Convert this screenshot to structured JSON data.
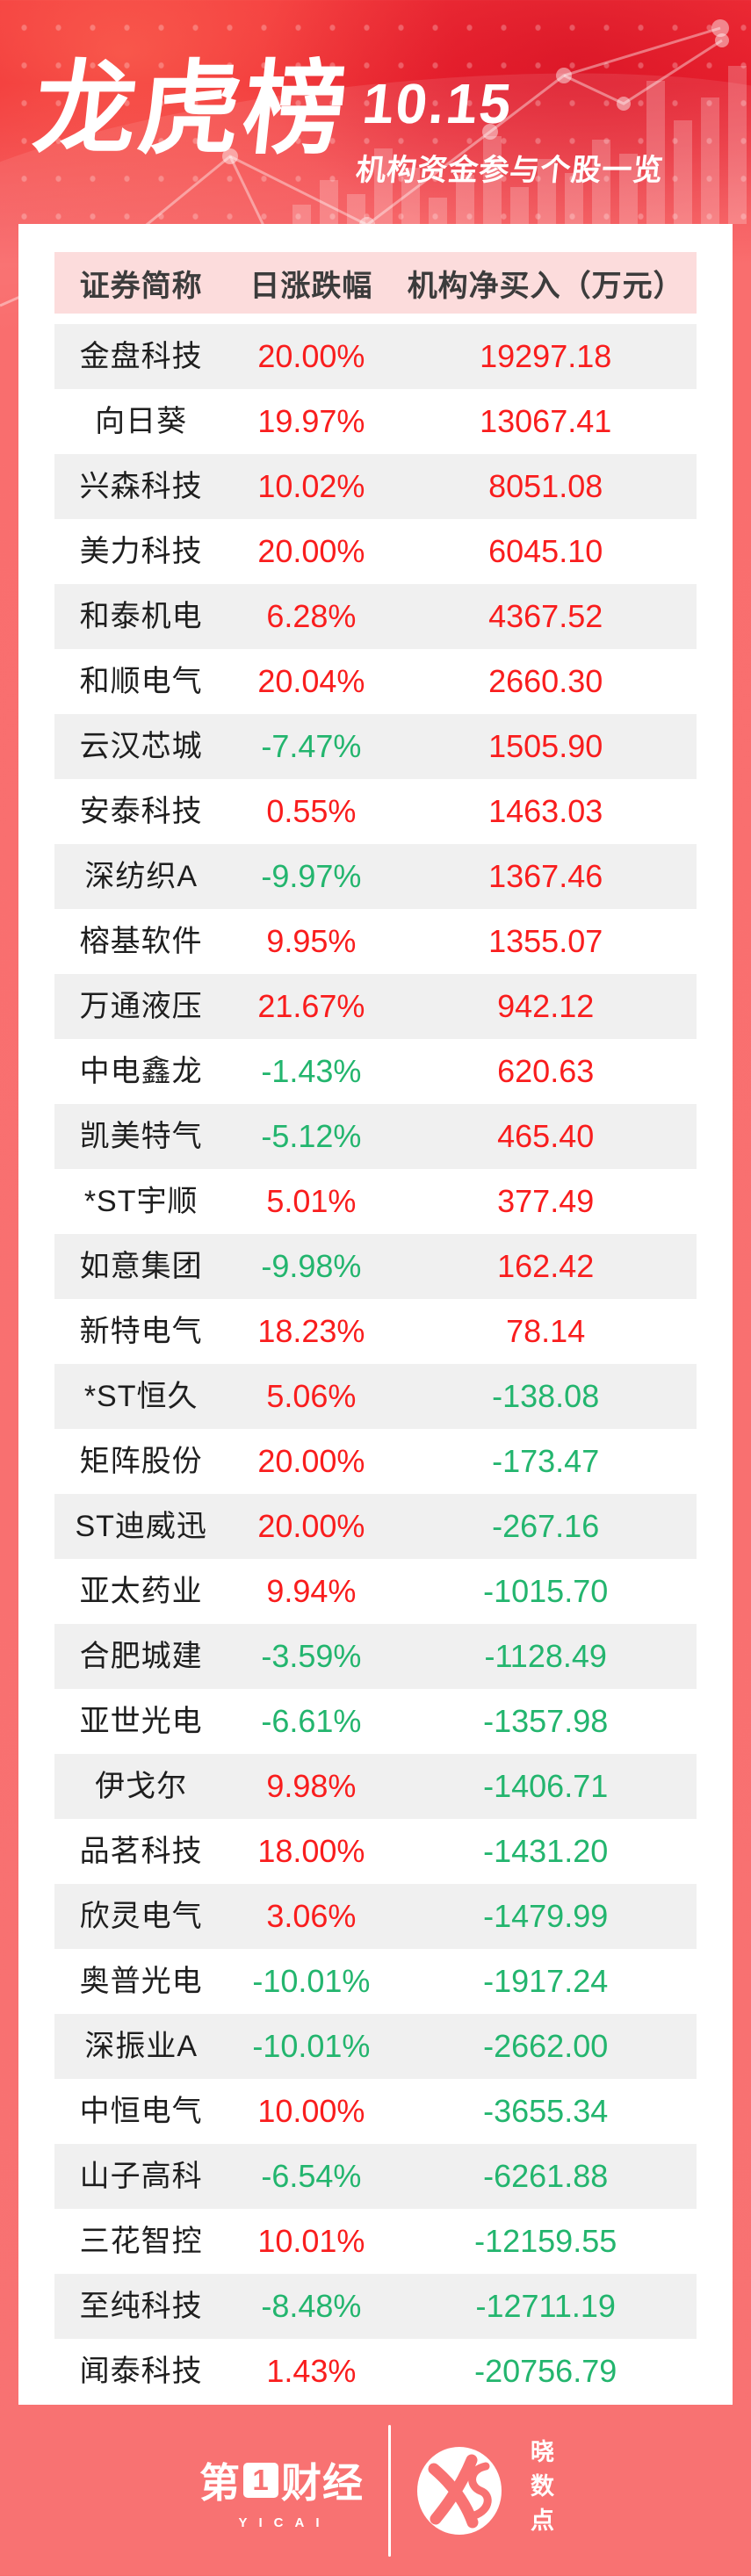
{
  "header": {
    "title": "龙虎榜",
    "date": "10.15",
    "subtitle": "机构资金参与个股一览"
  },
  "chart_data": {
    "type": "table",
    "title": "龙虎榜 10.15 机构资金参与个股一览",
    "columns": [
      "证券简称",
      "日涨跌幅",
      "机构净买入（万元）"
    ],
    "rows": [
      [
        "金盘科技",
        "20.00%",
        "19297.18"
      ],
      [
        "向日葵",
        "19.97%",
        "13067.41"
      ],
      [
        "兴森科技",
        "10.02%",
        "8051.08"
      ],
      [
        "美力科技",
        "20.00%",
        "6045.10"
      ],
      [
        "和泰机电",
        "6.28%",
        "4367.52"
      ],
      [
        "和顺电气",
        "20.04%",
        "2660.30"
      ],
      [
        "云汉芯城",
        "-7.47%",
        "1505.90"
      ],
      [
        "安泰科技",
        "0.55%",
        "1463.03"
      ],
      [
        "深纺织A",
        "-9.97%",
        "1367.46"
      ],
      [
        "榕基软件",
        "9.95%",
        "1355.07"
      ],
      [
        "万通液压",
        "21.67%",
        "942.12"
      ],
      [
        "中电鑫龙",
        "-1.43%",
        "620.63"
      ],
      [
        "凯美特气",
        "-5.12%",
        "465.40"
      ],
      [
        "*ST宇顺",
        "5.01%",
        "377.49"
      ],
      [
        "如意集团",
        "-9.98%",
        "162.42"
      ],
      [
        "新特电气",
        "18.23%",
        "78.14"
      ],
      [
        "*ST恒久",
        "5.06%",
        "-138.08"
      ],
      [
        "矩阵股份",
        "20.00%",
        "-173.47"
      ],
      [
        "ST迪威迅",
        "20.00%",
        "-267.16"
      ],
      [
        "亚太药业",
        "9.94%",
        "-1015.70"
      ],
      [
        "合肥城建",
        "-3.59%",
        "-1128.49"
      ],
      [
        "亚世光电",
        "-6.61%",
        "-1357.98"
      ],
      [
        "伊戈尔",
        "9.98%",
        "-1406.71"
      ],
      [
        "品茗科技",
        "18.00%",
        "-1431.20"
      ],
      [
        "欣灵电气",
        "3.06%",
        "-1479.99"
      ],
      [
        "奥普光电",
        "-10.01%",
        "-1917.24"
      ],
      [
        "深振业A",
        "-10.01%",
        "-2662.00"
      ],
      [
        "中恒电气",
        "10.00%",
        "-3655.34"
      ],
      [
        "山子高科",
        "-6.54%",
        "-6261.88"
      ],
      [
        "三花智控",
        "10.01%",
        "-12159.55"
      ],
      [
        "至纯科技",
        "-8.48%",
        "-12711.19"
      ],
      [
        "闻泰科技",
        "1.43%",
        "-20756.79"
      ]
    ]
  },
  "footer": {
    "brand_parts": [
      "第",
      "1",
      "财经"
    ],
    "brand_en": "YICAI",
    "logo_label": "晓数点"
  },
  "colors": {
    "up_red": "#f91d1d",
    "down_green": "#23b56e",
    "background": "#f87272",
    "header_pink": "#fcdcdc"
  }
}
